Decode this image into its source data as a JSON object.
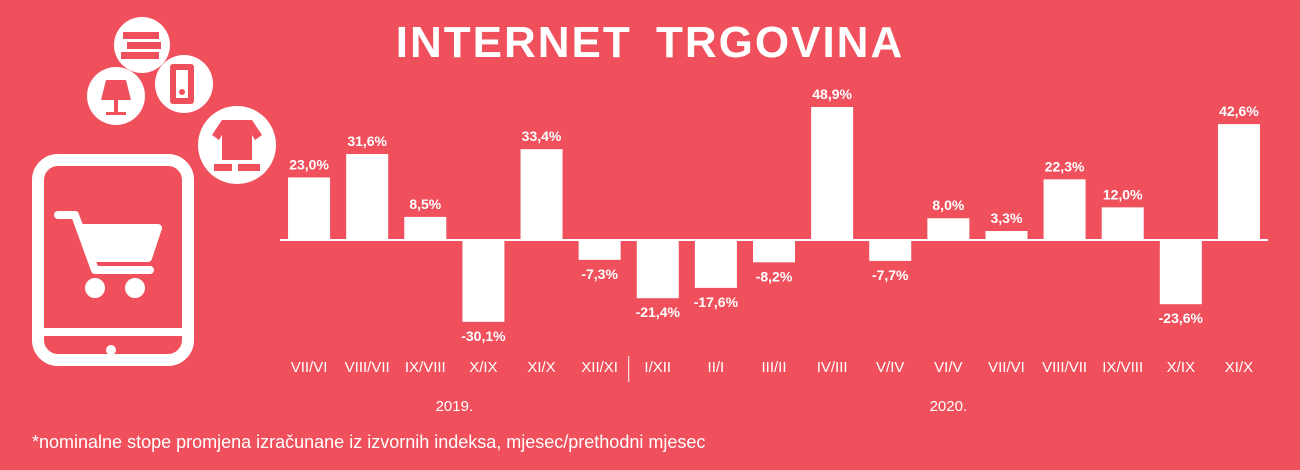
{
  "title": "INTERNET TRGOVINA",
  "footnote": "*nominalne stope promjena izračunane iz izvornih indeksa, mjesec/prethodni mjesec",
  "colors": {
    "background": "#f0505c",
    "bars": "#ffffff",
    "text": "#ffffff",
    "icon_detail": "#f0505c"
  },
  "icons": [
    "books-icon",
    "lamp-icon",
    "fridge-icon",
    "clothes-shoes-icon",
    "tablet-icon",
    "shopping-cart-icon"
  ],
  "chart_data": {
    "type": "bar",
    "categories": [
      "VII/VI",
      "VIII/VII",
      "IX/VIII",
      "X/IX",
      "XI/X",
      "XII/XI",
      "I/XII",
      "II/I",
      "III/II",
      "IV/III",
      "V/IV",
      "VI/V",
      "VII/VI",
      "VIII/VII",
      "IX/VIII",
      "X/IX",
      "XI/X"
    ],
    "values": [
      23.0,
      31.6,
      8.5,
      -30.1,
      33.4,
      -7.3,
      -21.4,
      -17.6,
      -8.2,
      48.9,
      -7.7,
      8.0,
      3.3,
      22.3,
      12.0,
      -23.6,
      42.6
    ],
    "data_labels": [
      "23,0%",
      "31,6%",
      "8,5%",
      "-30,1%",
      "33,4%",
      "-7,3%",
      "-21,4%",
      "-17,6%",
      "-8,2%",
      "48,9%",
      "-7,7%",
      "8,0%",
      "3,3%",
      "22,3%",
      "12,0%",
      "-23,6%",
      "42,6%"
    ],
    "groups": [
      {
        "label": "2019.",
        "start": 0,
        "end": 5
      },
      {
        "label": "2020.",
        "start": 6,
        "end": 16
      }
    ],
    "title": "INTERNET TRGOVINA",
    "xlabel": "",
    "ylabel": "",
    "grid": false,
    "legend": "none"
  }
}
